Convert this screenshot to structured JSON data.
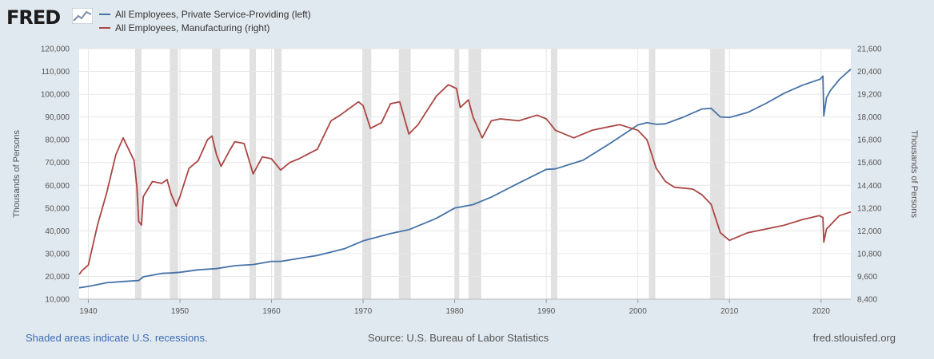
{
  "logo": {
    "text": "FRED",
    "icon": "line-chart-icon"
  },
  "footer": {
    "left": "Shaded areas indicate U.S. recessions.",
    "center": "Source: U.S. Bureau of Labor Statistics",
    "right": "fred.stlouisfed.org"
  },
  "colors": {
    "service": "#4572a7",
    "manufacturing": "#aa4643",
    "recession": "#e1e1e1",
    "background": "#e1e9f0"
  },
  "chart_data": {
    "type": "line",
    "legend_position": "top-left",
    "grid": true,
    "y_left": {
      "label": "Thousands of Persons",
      "range": [
        10000,
        120000
      ],
      "ticks": [
        "10,000",
        "20,000",
        "30,000",
        "40,000",
        "50,000",
        "60,000",
        "70,000",
        "80,000",
        "90,000",
        "100,000",
        "110,000",
        "120,000"
      ]
    },
    "y_right": {
      "label": "Thousands of Persons",
      "range": [
        8400,
        21600
      ],
      "ticks": [
        "8,400",
        "9,600",
        "10,800",
        "12,000",
        "13,200",
        "14,400",
        "15,600",
        "16,800",
        "18,000",
        "19,200",
        "20,400",
        "21,600"
      ]
    },
    "x": {
      "range": [
        1939.0,
        2023.25
      ],
      "ticks": [
        "1940",
        "1950",
        "1960",
        "1970",
        "1980",
        "1990",
        "2000",
        "2010",
        "2020"
      ]
    },
    "recessions": [
      [
        1945.1,
        1945.8
      ],
      [
        1948.9,
        1949.8
      ],
      [
        1953.5,
        1954.4
      ],
      [
        1957.6,
        1958.3
      ],
      [
        1960.3,
        1961.1
      ],
      [
        1969.9,
        1970.9
      ],
      [
        1973.9,
        1975.2
      ],
      [
        1980.0,
        1980.5
      ],
      [
        1981.5,
        1982.9
      ],
      [
        1990.5,
        1991.2
      ],
      [
        2001.2,
        2001.9
      ],
      [
        2007.9,
        2009.5
      ]
    ],
    "series": [
      {
        "name": "All Employees, Private Service-Providing (left)",
        "axis": "left",
        "points": [
          [
            1939.0,
            15000
          ],
          [
            1940,
            15600
          ],
          [
            1942,
            17200
          ],
          [
            1944,
            17800
          ],
          [
            1945.5,
            18200
          ],
          [
            1946,
            19800
          ],
          [
            1948,
            21300
          ],
          [
            1949,
            21500
          ],
          [
            1950,
            21800
          ],
          [
            1952,
            22900
          ],
          [
            1954,
            23400
          ],
          [
            1956,
            24700
          ],
          [
            1958,
            25200
          ],
          [
            1960,
            26600
          ],
          [
            1961,
            26600
          ],
          [
            1965,
            29200
          ],
          [
            1968,
            32200
          ],
          [
            1970,
            35600
          ],
          [
            1973,
            38800
          ],
          [
            1975,
            40500
          ],
          [
            1978,
            45500
          ],
          [
            1980,
            50000
          ],
          [
            1982,
            51500
          ],
          [
            1984,
            54800
          ],
          [
            1987,
            61000
          ],
          [
            1990,
            67000
          ],
          [
            1991,
            67200
          ],
          [
            1994,
            71000
          ],
          [
            1997,
            78500
          ],
          [
            2000,
            86500
          ],
          [
            2001,
            87500
          ],
          [
            2002,
            86800
          ],
          [
            2003,
            87000
          ],
          [
            2005,
            90000
          ],
          [
            2007,
            93500
          ],
          [
            2008,
            93800
          ],
          [
            2009,
            90000
          ],
          [
            2010,
            89800
          ],
          [
            2012,
            92000
          ],
          [
            2014,
            96000
          ],
          [
            2016,
            100500
          ],
          [
            2018,
            104000
          ],
          [
            2019.9,
            106600
          ],
          [
            2020.2,
            108000
          ],
          [
            2020.3,
            90500
          ],
          [
            2020.6,
            98500
          ],
          [
            2021,
            101500
          ],
          [
            2022,
            106500
          ],
          [
            2023.25,
            111000
          ]
        ]
      },
      {
        "name": "All Employees, Manufacturing (right)",
        "axis": "right",
        "points": [
          [
            1939.0,
            9700
          ],
          [
            1939.3,
            9900
          ],
          [
            1940,
            10200
          ],
          [
            1941,
            12300
          ],
          [
            1942,
            14000
          ],
          [
            1943,
            16000
          ],
          [
            1943.8,
            16900
          ],
          [
            1944.5,
            16200
          ],
          [
            1945,
            15700
          ],
          [
            1945.3,
            14300
          ],
          [
            1945.5,
            12500
          ],
          [
            1945.8,
            12300
          ],
          [
            1946,
            13800
          ],
          [
            1947,
            14600
          ],
          [
            1948,
            14500
          ],
          [
            1948.6,
            14700
          ],
          [
            1949,
            14000
          ],
          [
            1949.6,
            13300
          ],
          [
            1950,
            13800
          ],
          [
            1951,
            15300
          ],
          [
            1952,
            15700
          ],
          [
            1953,
            16800
          ],
          [
            1953.5,
            17000
          ],
          [
            1954,
            16000
          ],
          [
            1954.5,
            15400
          ],
          [
            1955.5,
            16300
          ],
          [
            1956,
            16700
          ],
          [
            1957,
            16600
          ],
          [
            1958,
            15000
          ],
          [
            1959,
            15900
          ],
          [
            1960,
            15800
          ],
          [
            1961,
            15200
          ],
          [
            1962,
            15600
          ],
          [
            1963,
            15800
          ],
          [
            1965,
            16300
          ],
          [
            1966.5,
            17800
          ],
          [
            1967.5,
            18100
          ],
          [
            1969.5,
            18800
          ],
          [
            1970,
            18600
          ],
          [
            1970.8,
            17400
          ],
          [
            1972,
            17700
          ],
          [
            1973,
            18700
          ],
          [
            1974,
            18800
          ],
          [
            1975,
            17100
          ],
          [
            1976,
            17600
          ],
          [
            1978,
            19100
          ],
          [
            1979.3,
            19700
          ],
          [
            1980.2,
            19500
          ],
          [
            1980.6,
            18500
          ],
          [
            1981.5,
            18900
          ],
          [
            1982,
            18000
          ],
          [
            1983,
            16900
          ],
          [
            1984,
            17800
          ],
          [
            1985,
            17900
          ],
          [
            1987,
            17800
          ],
          [
            1989,
            18100
          ],
          [
            1990,
            17900
          ],
          [
            1991,
            17300
          ],
          [
            1993,
            16900
          ],
          [
            1995,
            17300
          ],
          [
            1997,
            17500
          ],
          [
            1998,
            17600
          ],
          [
            2000,
            17300
          ],
          [
            2001,
            16800
          ],
          [
            2002,
            15300
          ],
          [
            2003,
            14600
          ],
          [
            2004,
            14300
          ],
          [
            2006,
            14200
          ],
          [
            2007,
            13900
          ],
          [
            2008,
            13400
          ],
          [
            2009,
            11900
          ],
          [
            2010,
            11500
          ],
          [
            2012,
            11900
          ],
          [
            2014,
            12100
          ],
          [
            2016,
            12300
          ],
          [
            2018,
            12600
          ],
          [
            2019.8,
            12800
          ],
          [
            2020.2,
            12700
          ],
          [
            2020.3,
            11400
          ],
          [
            2020.6,
            12100
          ],
          [
            2021,
            12300
          ],
          [
            2022,
            12800
          ],
          [
            2023.25,
            13000
          ]
        ]
      }
    ]
  }
}
